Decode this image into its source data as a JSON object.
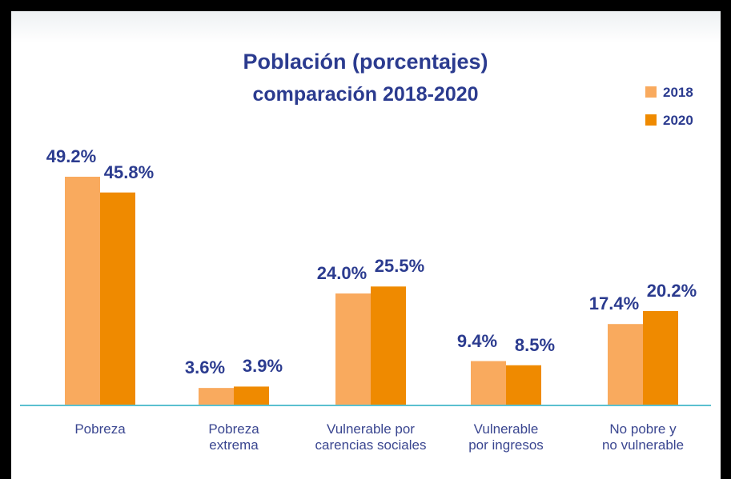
{
  "chart_data": {
    "type": "bar",
    "title": "Población (porcentajes)",
    "subtitle": "comparación 2018-2020",
    "categories": [
      "Pobreza",
      "Pobreza\nextrema",
      "Vulnerable por\ncarencias sociales",
      "Vulnerable\npor ingresos",
      "No pobre y\nno vulnerable"
    ],
    "series": [
      {
        "name": "2018",
        "color": "#f9aa5e",
        "values": [
          49.2,
          3.6,
          24.0,
          9.4,
          17.4
        ],
        "value_labels": [
          "49.2%",
          "3.6%",
          "24.0%",
          "9.4%",
          "17.4%"
        ]
      },
      {
        "name": "2020",
        "color": "#ef8a00",
        "values": [
          45.8,
          3.9,
          25.5,
          8.5,
          20.2
        ],
        "value_labels": [
          "45.8%",
          "3.9%",
          "25.5%",
          "8.5%",
          "20.2%"
        ]
      }
    ]
  }
}
